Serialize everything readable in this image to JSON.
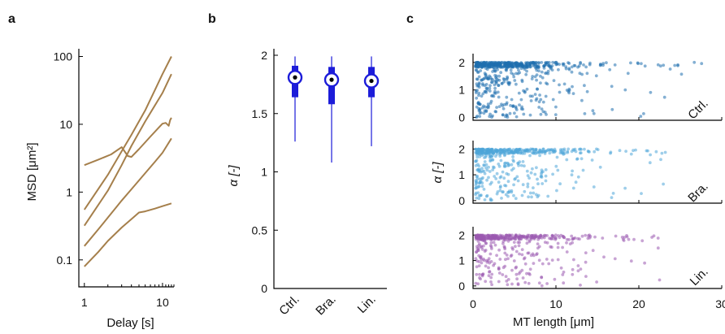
{
  "panels": {
    "a": {
      "letter": "a"
    },
    "b": {
      "letter": "b"
    },
    "c": {
      "letter": "c"
    }
  },
  "chart_data": [
    {
      "panel": "a",
      "type": "line",
      "xlabel": "Delay [s]",
      "ylabel": "MSD [μm²]",
      "xscale": "log",
      "yscale": "log",
      "xlim": [
        0.85,
        14
      ],
      "ylim": [
        0.04,
        130
      ],
      "xticks": [
        {
          "value": 1,
          "label": "1"
        },
        {
          "value": 10,
          "label": "10"
        }
      ],
      "yticks": [
        {
          "value": 100,
          "label": "100"
        },
        {
          "value": 10,
          "label": "10"
        },
        {
          "value": 1,
          "label": "1"
        },
        {
          "value": 0.1,
          "label": "0.1"
        }
      ],
      "color": "#a57f4b",
      "series": [
        {
          "points": [
            [
              1,
              2.5
            ],
            [
              1.5,
              3.0
            ],
            [
              2.2,
              3.6
            ],
            [
              3.0,
              4.6
            ],
            [
              3.6,
              3.4
            ],
            [
              4.0,
              3.3
            ],
            [
              5,
              4.3
            ],
            [
              7,
              6.6
            ],
            [
              9,
              9.0
            ],
            [
              10,
              10.2
            ],
            [
              11,
              10.5
            ],
            [
              12,
              9.5
            ],
            [
              12.5,
              11.5
            ],
            [
              13,
              12.5
            ]
          ]
        },
        {
          "points": [
            [
              1,
              0.55
            ],
            [
              2,
              1.8
            ],
            [
              3,
              4.0
            ],
            [
              4,
              7.0
            ],
            [
              6,
              16
            ],
            [
              8,
              32
            ],
            [
              10,
              55
            ],
            [
              13,
              100
            ]
          ]
        },
        {
          "points": [
            [
              1,
              0.32
            ],
            [
              2,
              1.05
            ],
            [
              3,
              2.5
            ],
            [
              4,
              4.8
            ],
            [
              6,
              11
            ],
            [
              8,
              19
            ],
            [
              10,
              29
            ],
            [
              13,
              55
            ]
          ]
        },
        {
          "points": [
            [
              1,
              0.16
            ],
            [
              1.5,
              0.28
            ],
            [
              2,
              0.42
            ],
            [
              3,
              0.75
            ],
            [
              4,
              1.1
            ],
            [
              6,
              1.9
            ],
            [
              8,
              2.8
            ],
            [
              10,
              3.8
            ],
            [
              13,
              6.2
            ]
          ]
        },
        {
          "points": [
            [
              1,
              0.08
            ],
            [
              1.5,
              0.13
            ],
            [
              2,
              0.19
            ],
            [
              3,
              0.3
            ],
            [
              4,
              0.4
            ],
            [
              5,
              0.5
            ],
            [
              6,
              0.52
            ],
            [
              8,
              0.57
            ],
            [
              10,
              0.62
            ],
            [
              13,
              0.68
            ]
          ]
        }
      ]
    },
    {
      "panel": "b",
      "type": "box",
      "ylabel": "α [-]",
      "ylim": [
        0,
        2
      ],
      "yticks": [
        {
          "value": 2,
          "label": "2"
        },
        {
          "value": 1.5,
          "label": "1.5"
        },
        {
          "value": 1,
          "label": "1"
        },
        {
          "value": 0.5,
          "label": "0.5"
        },
        {
          "value": 0,
          "label": "0"
        }
      ],
      "categories": [
        "Ctrl.",
        "Bra.",
        "Lin."
      ],
      "color": "#1c1cd9",
      "boxes": [
        {
          "category": "Ctrl.",
          "min": 1.26,
          "q1": 1.64,
          "median": 1.81,
          "q3": 1.91,
          "max": 1.99
        },
        {
          "category": "Bra.",
          "min": 1.08,
          "q1": 1.58,
          "median": 1.79,
          "q3": 1.9,
          "max": 1.99
        },
        {
          "category": "Lin.",
          "min": 1.22,
          "q1": 1.64,
          "median": 1.78,
          "q3": 1.9,
          "max": 1.99
        }
      ]
    },
    {
      "panel": "c",
      "type": "scatter",
      "xlabel": "MT length [μm]",
      "ylabel": "α [-]",
      "xlim": [
        0,
        30
      ],
      "ylim": [
        -0.1,
        2.2
      ],
      "xticks": [
        {
          "value": 0,
          "label": "0"
        },
        {
          "value": 10,
          "label": "10"
        },
        {
          "value": 20,
          "label": "20"
        },
        {
          "value": 30,
          "label": "30"
        }
      ],
      "yticks": [
        {
          "value": 2,
          "label": "2"
        },
        {
          "value": 1,
          "label": "1"
        },
        {
          "value": 0,
          "label": "0"
        }
      ],
      "rows": [
        {
          "label": "Ctrl.",
          "color": "#1f6fae",
          "count": 650,
          "seed": 11,
          "xscale": 5.2,
          "xmax": 29
        },
        {
          "label": "Bra.",
          "color": "#4fa6d8",
          "count": 520,
          "seed": 23,
          "xscale": 5.0,
          "xmax": 28
        },
        {
          "label": "Lin.",
          "color": "#9b59b0",
          "count": 460,
          "seed": 37,
          "xscale": 5.5,
          "xmax": 23
        }
      ]
    }
  ]
}
